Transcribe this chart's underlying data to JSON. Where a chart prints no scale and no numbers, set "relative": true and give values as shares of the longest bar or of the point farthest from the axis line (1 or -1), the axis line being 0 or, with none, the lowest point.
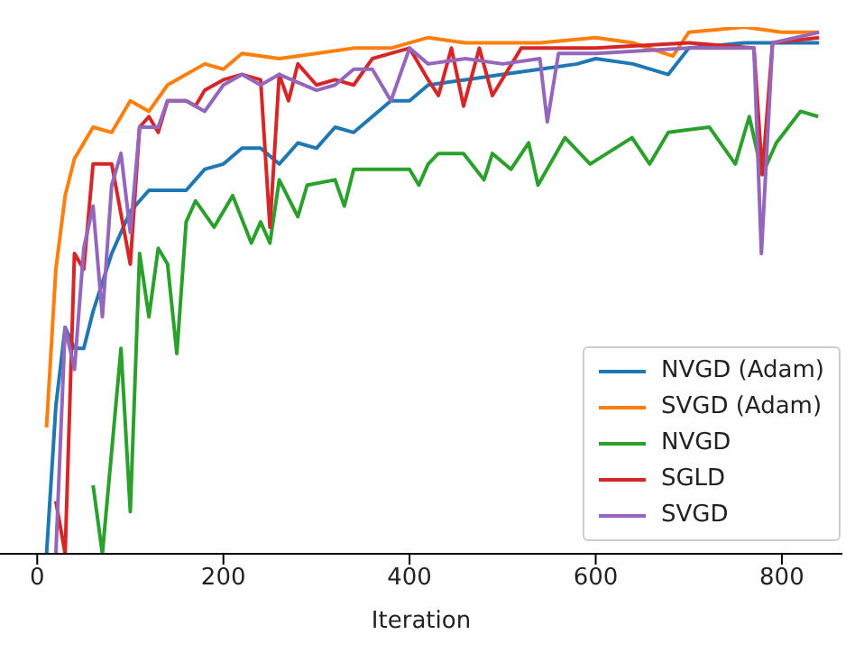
{
  "chart_data": {
    "type": "line",
    "xlabel": "Iteration",
    "relative": true,
    "xlim": [
      -40,
      865
    ],
    "xticks": [
      0,
      200,
      400,
      600,
      800
    ],
    "legend": "bottom right",
    "grid": false,
    "marker": "none",
    "line_style": "solid",
    "series": [
      {
        "name": "NVGD (Adam)",
        "color": "#1f77b4",
        "x": [
          10,
          20,
          30,
          40,
          50,
          60,
          80,
          100,
          120,
          160,
          180,
          200,
          220,
          240,
          260,
          280,
          300,
          320,
          340,
          360,
          380,
          400,
          420,
          460,
          500,
          540,
          580,
          600,
          640,
          678,
          700,
          760,
          800,
          840
        ],
        "values": [
          0,
          0.28,
          0.43,
          0.39,
          0.39,
          0.46,
          0.57,
          0.65,
          0.69,
          0.69,
          0.73,
          0.74,
          0.77,
          0.77,
          0.74,
          0.78,
          0.77,
          0.81,
          0.8,
          0.83,
          0.86,
          0.86,
          0.89,
          0.9,
          0.91,
          0.92,
          0.93,
          0.94,
          0.93,
          0.91,
          0.96,
          0.97,
          0.97,
          0.97
        ]
      },
      {
        "name": "SVGD (Adam)",
        "color": "#ff7f0e",
        "x": [
          10,
          20,
          30,
          40,
          60,
          80,
          100,
          120,
          140,
          160,
          180,
          200,
          220,
          260,
          300,
          340,
          380,
          420,
          460,
          500,
          540,
          600,
          640,
          683,
          700,
          760,
          800,
          840
        ],
        "values": [
          0.24,
          0.54,
          0.68,
          0.75,
          0.81,
          0.8,
          0.86,
          0.84,
          0.89,
          0.91,
          0.93,
          0.92,
          0.95,
          0.94,
          0.95,
          0.96,
          0.96,
          0.98,
          0.97,
          0.97,
          0.97,
          0.98,
          0.97,
          0.945,
          0.99,
          1,
          0.99,
          0.99
        ]
      },
      {
        "name": "NVGD",
        "color": "#2ca02c",
        "x": [
          60,
          70,
          90,
          100,
          110,
          120,
          130,
          140,
          150,
          160,
          170,
          190,
          210,
          230,
          240,
          250,
          260,
          280,
          290,
          320,
          330,
          340,
          400,
          410,
          420,
          431,
          458,
          480,
          489,
          509,
          528,
          538,
          567,
          594,
          639,
          658,
          678,
          722,
          750,
          765,
          779,
          794,
          820,
          839
        ],
        "values": [
          0.13,
          0,
          0.39,
          0.08,
          0.57,
          0.45,
          0.58,
          0.55,
          0.38,
          0.63,
          0.67,
          0.62,
          0.68,
          0.59,
          0.63,
          0.59,
          0.71,
          0.64,
          0.7,
          0.71,
          0.66,
          0.73,
          0.73,
          0.7,
          0.74,
          0.76,
          0.76,
          0.71,
          0.76,
          0.73,
          0.78,
          0.7,
          0.79,
          0.74,
          0.79,
          0.74,
          0.8,
          0.81,
          0.74,
          0.83,
          0.72,
          0.78,
          0.84,
          0.83
        ]
      },
      {
        "name": "SGLD",
        "color": "#d62728",
        "x": [
          20,
          30,
          40,
          50,
          60,
          80,
          100,
          110,
          120,
          130,
          140,
          160,
          170,
          180,
          200,
          220,
          240,
          250,
          260,
          270,
          280,
          300,
          320,
          340,
          360,
          380,
          400,
          420,
          431,
          445,
          458,
          475,
          489,
          520,
          600,
          700,
          770,
          779,
          790,
          840
        ],
        "values": [
          0.1,
          0,
          0.57,
          0.54,
          0.74,
          0.74,
          0.55,
          0.81,
          0.83,
          0.8,
          0.86,
          0.86,
          0.85,
          0.88,
          0.9,
          0.91,
          0.9,
          0.62,
          0.91,
          0.86,
          0.93,
          0.89,
          0.9,
          0.89,
          0.94,
          0.95,
          0.96,
          0.9,
          0.87,
          0.96,
          0.85,
          0.96,
          0.87,
          0.96,
          0.96,
          0.97,
          0.96,
          0.72,
          0.97,
          0.98
        ]
      },
      {
        "name": "SVGD",
        "color": "#9467bd",
        "x": [
          20,
          30,
          40,
          50,
          60,
          70,
          80,
          90,
          100,
          110,
          130,
          140,
          160,
          180,
          200,
          220,
          240,
          260,
          300,
          320,
          340,
          360,
          380,
          400,
          420,
          460,
          500,
          540,
          548,
          560,
          600,
          700,
          770,
          778,
          790,
          840
        ],
        "values": [
          0,
          0.43,
          0.35,
          0.58,
          0.66,
          0.45,
          0.7,
          0.76,
          0.61,
          0.81,
          0.81,
          0.86,
          0.86,
          0.84,
          0.89,
          0.91,
          0.89,
          0.91,
          0.88,
          0.89,
          0.92,
          0.92,
          0.86,
          0.96,
          0.93,
          0.94,
          0.93,
          0.94,
          0.82,
          0.95,
          0.95,
          0.96,
          0.96,
          0.57,
          0.97,
          0.99
        ]
      }
    ]
  }
}
